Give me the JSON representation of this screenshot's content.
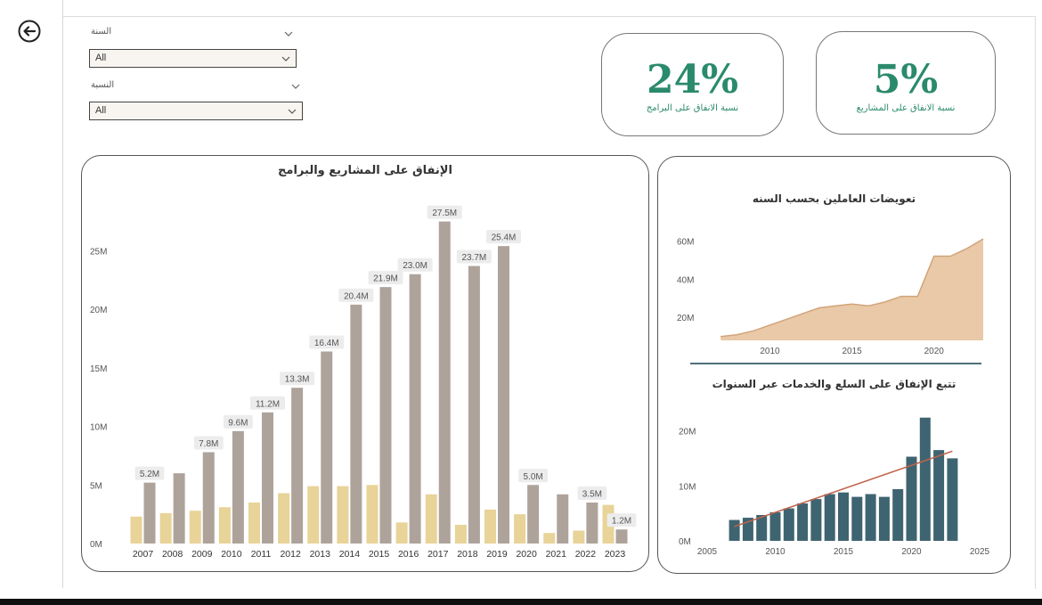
{
  "filters": {
    "year": {
      "title": "السنة",
      "selected": "All"
    },
    "ratio": {
      "title": "النسبة",
      "selected": "All"
    }
  },
  "kpis": {
    "programs": {
      "value": "24%",
      "label": "نسبة الانفاق على البرامج"
    },
    "projects": {
      "value": "5%",
      "label": "نسبة الانفاق على المشاريع"
    }
  },
  "colors": {
    "kpi_accent": "#2a8a6c",
    "bar_light": "#e8d398",
    "bar_dark": "#aea39b",
    "area_fill": "#e9c9a7",
    "area_line": "#d2a47a",
    "teal_bar": "#3f6471",
    "trend_line": "#c0634a"
  },
  "chart_data": [
    {
      "type": "bar",
      "title": "الإنفاق على المشاريع والبرامج",
      "categories": [
        "2007",
        "2008",
        "2009",
        "2010",
        "2011",
        "2012",
        "2013",
        "2014",
        "2015",
        "2016",
        "2017",
        "2018",
        "2019",
        "2020",
        "2021",
        "2022",
        "2023"
      ],
      "series": [
        {
          "values": [
            2.3,
            2.6,
            2.8,
            3.1,
            3.5,
            4.3,
            4.9,
            4.9,
            5.0,
            1.8,
            4.2,
            1.6,
            2.9,
            2.5,
            0.9,
            1.1,
            3.3
          ]
        },
        {
          "values": [
            5.2,
            6.0,
            7.8,
            9.6,
            11.2,
            13.3,
            16.4,
            20.4,
            21.9,
            23.0,
            27.5,
            23.7,
            25.4,
            5.0,
            4.2,
            3.5,
            1.2
          ]
        }
      ],
      "data_labels": [
        "5.2M",
        "",
        "7.8M",
        "9.6M",
        "11.2M",
        "13.3M",
        "16.4M",
        "20.4M",
        "21.9M",
        "23.0M",
        "27.5M",
        "23.7M",
        "25.4M",
        "5.0M",
        "",
        "3.5M",
        "1.2M"
      ],
      "yticks": [
        "0M",
        "5M",
        "10M",
        "15M",
        "20M",
        "25M"
      ],
      "ylim": [
        0,
        28
      ],
      "grid": false
    },
    {
      "type": "area",
      "title": "تعويضات العاملين بحسب السنه",
      "x": [
        2007,
        2008,
        2009,
        2010,
        2011,
        2012,
        2013,
        2014,
        2015,
        2016,
        2017,
        2018,
        2019,
        2020,
        2021,
        2022,
        2023
      ],
      "values": [
        10,
        11,
        13,
        16,
        19,
        22,
        25,
        26,
        27,
        26,
        28,
        31,
        31,
        52,
        52,
        56,
        61
      ],
      "xticks": [
        "2010",
        "2015",
        "2020"
      ],
      "yticks": [
        "20M",
        "40M",
        "60M"
      ],
      "xlim": [
        2006.5,
        2023
      ],
      "ylim": [
        8,
        62
      ]
    },
    {
      "type": "bar",
      "title": "تتبع الإنفاق على السلع والخدمات عبر السنوات",
      "x": [
        2007,
        2008,
        2009,
        2010,
        2011,
        2012,
        2013,
        2014,
        2015,
        2016,
        2017,
        2018,
        2019,
        2020,
        2021,
        2022,
        2023
      ],
      "values": [
        3.8,
        4.2,
        4.7,
        5.2,
        5.9,
        6.8,
        7.6,
        8.5,
        8.8,
        8.0,
        8.5,
        8.0,
        9.4,
        15.3,
        22.4,
        16.5,
        15.0
      ],
      "trendline": {
        "from": [
          2007,
          2.6
        ],
        "to": [
          2023,
          16.3
        ]
      },
      "xticks": [
        "2005",
        "2010",
        "2015",
        "2020",
        "2025"
      ],
      "yticks": [
        "0M",
        "10M",
        "20M"
      ],
      "xlim": [
        2005,
        2025
      ],
      "ylim": [
        0,
        23
      ]
    }
  ]
}
